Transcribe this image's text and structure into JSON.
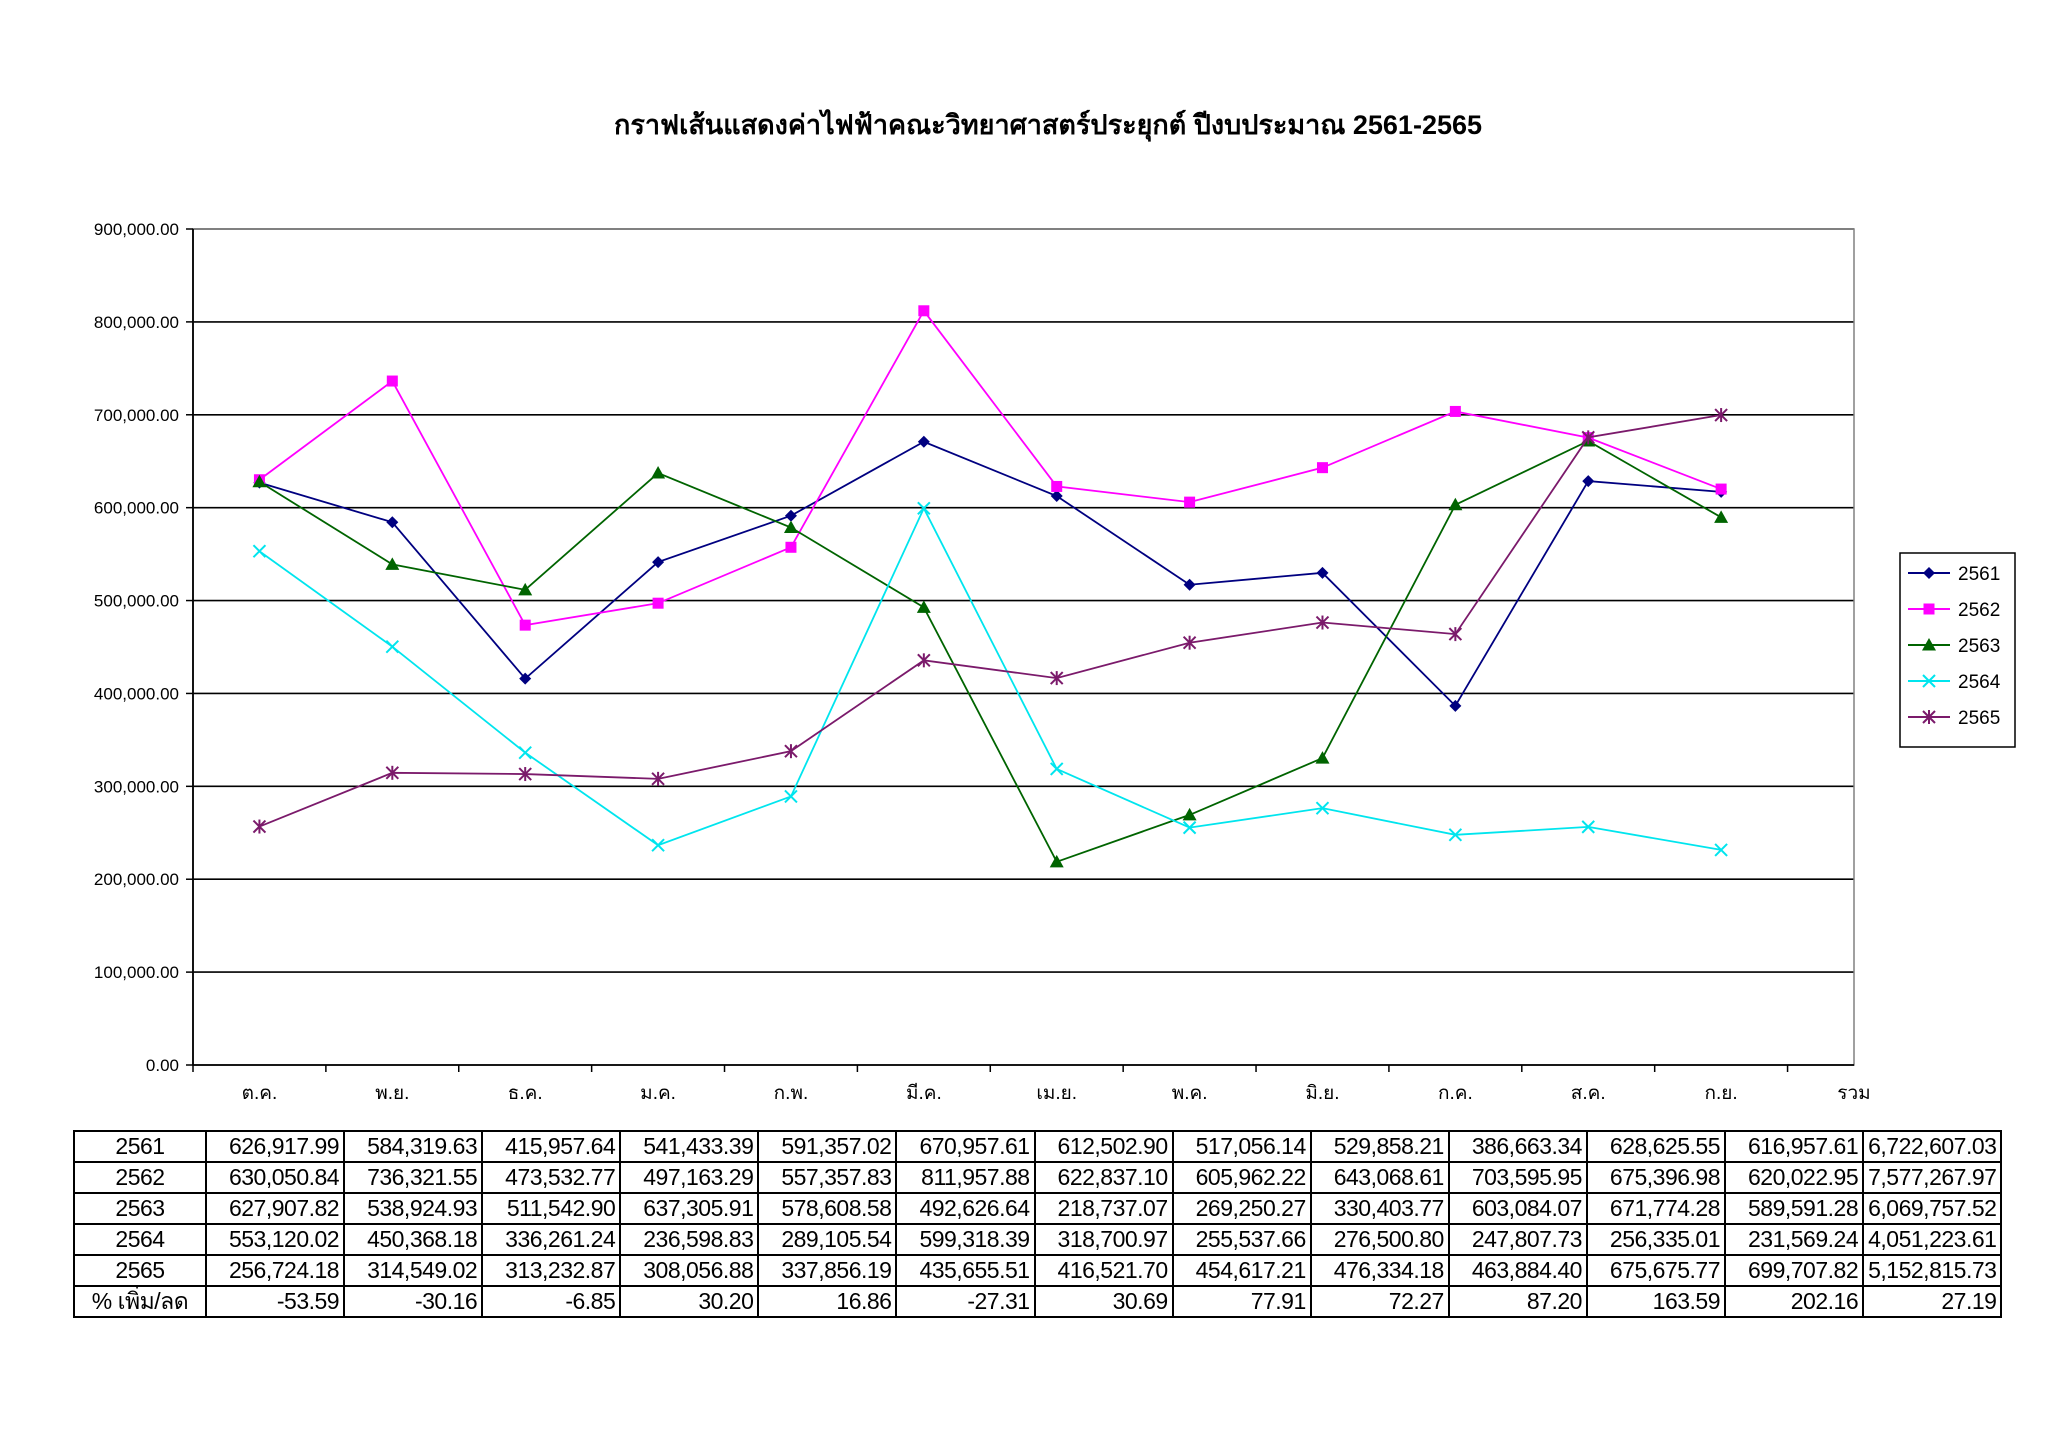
{
  "colors": {
    "2561": "#000080",
    "2562": "#ff00ff",
    "2563": "#006400",
    "2564": "#00e5ee",
    "2565": "#7b1a6b",
    "gridline": "#000000",
    "plot_border": "#808080"
  },
  "chart_data": {
    "type": "line",
    "title": "กราฟเส้นแสดงค่าไฟฟ้าคณะวิทยาศาสตร์ประยุกต์ ปีงบประมาณ 2561-2565",
    "xlabel": "",
    "ylabel": "",
    "categories": [
      "ต.ค.",
      "พ.ย.",
      "ธ.ค.",
      "ม.ค.",
      "ก.พ.",
      "มี.ค.",
      "เม.ย.",
      "พ.ค.",
      "มิ.ย.",
      "ก.ค.",
      "ส.ค.",
      "ก.ย."
    ],
    "ylim": [
      0,
      900000
    ],
    "y_ticks": [
      0,
      100000,
      200000,
      300000,
      400000,
      500000,
      600000,
      700000,
      800000,
      900000
    ],
    "y_tick_labels": [
      "0.00",
      "100,000.00",
      "200,000.00",
      "300,000.00",
      "400,000.00",
      "500,000.00",
      "600,000.00",
      "700,000.00",
      "800,000.00",
      "900,000.00"
    ],
    "grid": true,
    "legend_position": "right",
    "series": [
      {
        "name": "2561",
        "marker": "diamond",
        "values": [
          626917.99,
          584319.63,
          415957.64,
          541433.39,
          591357.02,
          670957.61,
          612502.9,
          517056.14,
          529858.21,
          386663.34,
          628625.55,
          616957.61
        ]
      },
      {
        "name": "2562",
        "marker": "square",
        "values": [
          630050.84,
          736321.55,
          473532.77,
          497163.29,
          557357.83,
          811957.88,
          622837.1,
          605962.22,
          643068.61,
          703595.95,
          675396.98,
          620022.95
        ]
      },
      {
        "name": "2563",
        "marker": "triangle",
        "values": [
          627907.82,
          538924.93,
          511542.9,
          637305.91,
          578608.58,
          492626.64,
          218737.07,
          269250.27,
          330403.77,
          603084.07,
          671774.28,
          589591.28
        ]
      },
      {
        "name": "2564",
        "marker": "x",
        "values": [
          553120.02,
          450368.18,
          336261.24,
          236598.83,
          289105.54,
          599318.39,
          318700.97,
          255537.66,
          276500.8,
          247807.73,
          256335.01,
          231569.24
        ]
      },
      {
        "name": "2565",
        "marker": "star",
        "values": [
          256724.18,
          314549.02,
          313232.87,
          308056.88,
          337856.19,
          435655.51,
          416521.7,
          454617.21,
          476334.18,
          463884.4,
          675675.77,
          699707.82
        ]
      }
    ],
    "table": {
      "header_extra": "รวม",
      "rows": [
        {
          "label": "2561",
          "cells": [
            "626,917.99",
            "584,319.63",
            "415,957.64",
            "541,433.39",
            "591,357.02",
            "670,957.61",
            "612,502.90",
            "517,056.14",
            "529,858.21",
            "386,663.34",
            "628,625.55",
            "616,957.61",
            "6,722,607.03"
          ]
        },
        {
          "label": "2562",
          "cells": [
            "630,050.84",
            "736,321.55",
            "473,532.77",
            "497,163.29",
            "557,357.83",
            "811,957.88",
            "622,837.10",
            "605,962.22",
            "643,068.61",
            "703,595.95",
            "675,396.98",
            "620,022.95",
            "7,577,267.97"
          ]
        },
        {
          "label": "2563",
          "cells": [
            "627,907.82",
            "538,924.93",
            "511,542.90",
            "637,305.91",
            "578,608.58",
            "492,626.64",
            "218,737.07",
            "269,250.27",
            "330,403.77",
            "603,084.07",
            "671,774.28",
            "589,591.28",
            "6,069,757.52"
          ]
        },
        {
          "label": "2564",
          "cells": [
            "553,120.02",
            "450,368.18",
            "336,261.24",
            "236,598.83",
            "289,105.54",
            "599,318.39",
            "318,700.97",
            "255,537.66",
            "276,500.80",
            "247,807.73",
            "256,335.01",
            "231,569.24",
            "4,051,223.61"
          ]
        },
        {
          "label": "2565",
          "cells": [
            "256,724.18",
            "314,549.02",
            "313,232.87",
            "308,056.88",
            "337,856.19",
            "435,655.51",
            "416,521.70",
            "454,617.21",
            "476,334.18",
            "463,884.40",
            "675,675.77",
            "699,707.82",
            "5,152,815.73"
          ]
        },
        {
          "label": "% เพิ่ม/ลด",
          "cells": [
            "-53.59",
            "-30.16",
            "-6.85",
            "30.20",
            "16.86",
            "-27.31",
            "30.69",
            "77.91",
            "72.27",
            "87.20",
            "163.59",
            "202.16",
            "27.19"
          ]
        }
      ]
    }
  }
}
